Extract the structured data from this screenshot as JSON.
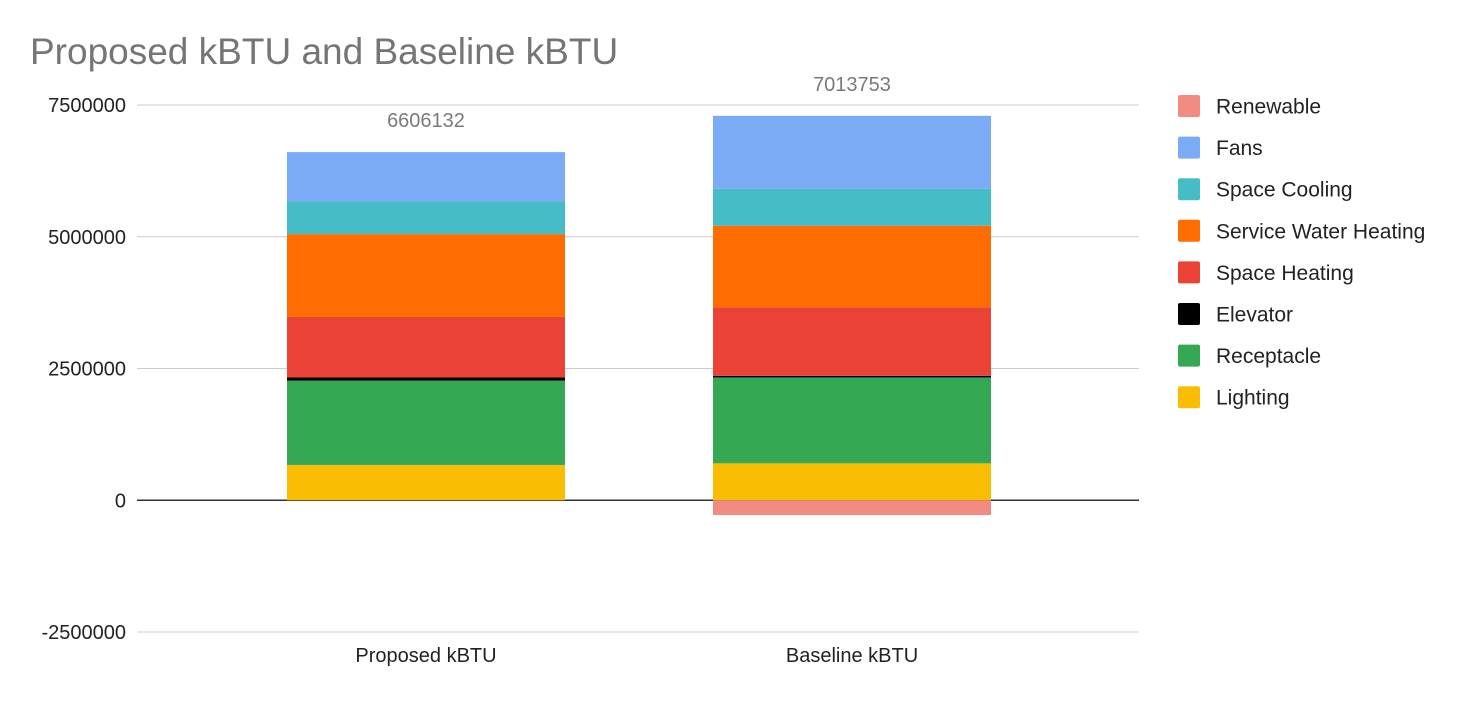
{
  "chart_data": {
    "type": "bar",
    "stacked": true,
    "title": "Proposed kBTU and Baseline kBTU",
    "categories": [
      "Proposed kBTU",
      "Baseline kBTU"
    ],
    "series": [
      {
        "name": "Lighting",
        "color": "#FBBC04",
        "values": [
          670000,
          700000
        ]
      },
      {
        "name": "Receptacle",
        "color": "#34A853",
        "values": [
          1600000,
          1630000
        ]
      },
      {
        "name": "Elevator",
        "color": "#000000",
        "values": [
          60000,
          30000
        ]
      },
      {
        "name": "Space Heating",
        "color": "#EA4335",
        "values": [
          1150000,
          1300000
        ]
      },
      {
        "name": "Service Water Heating",
        "color": "#FF6D01",
        "values": [
          1570000,
          1550000
        ]
      },
      {
        "name": "Space Cooling",
        "color": "#46BDC6",
        "values": [
          620000,
          700000
        ]
      },
      {
        "name": "Fans",
        "color": "#7BAAF7",
        "values": [
          936132,
          1383753
        ]
      },
      {
        "name": "Renewable",
        "color": "#F28B82",
        "values": [
          0,
          -280000
        ]
      }
    ],
    "totals": [
      "6606132",
      "7013753"
    ],
    "ylim": [
      -2500000,
      7500000
    ],
    "y_ticks": [
      "7500000",
      "5000000",
      "2500000",
      "0",
      "-2500000"
    ],
    "legend_order": [
      "Renewable",
      "Fans",
      "Space Cooling",
      "Service Water Heating",
      "Space Heating",
      "Elevator",
      "Receptacle",
      "Lighting"
    ],
    "legend_position": "right",
    "grid": true
  }
}
